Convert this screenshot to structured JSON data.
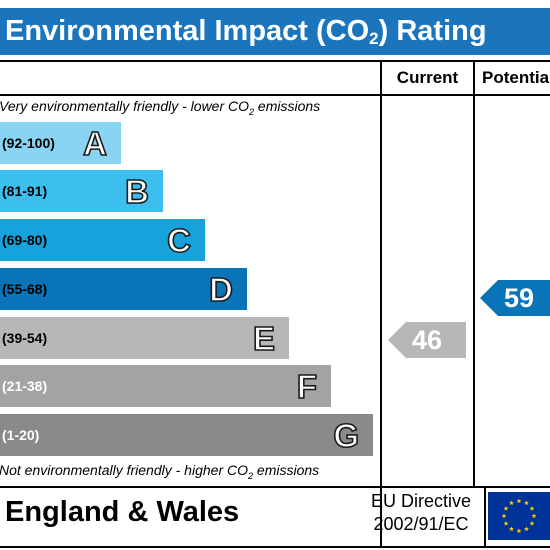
{
  "title": {
    "main": "Environmental Impact (CO",
    "sub": "2",
    "end": ") Rating"
  },
  "columns": {
    "current": "Current",
    "potential": "Potential"
  },
  "notes": {
    "top_pre": "Very environmentally friendly - lower CO",
    "top_sub": "2",
    "top_post": " emissions",
    "bottom_pre": "Not environmentally friendly - higher CO",
    "bottom_sub": "2",
    "bottom_post": " emissions"
  },
  "bands": [
    {
      "range": "(92-100)",
      "letter": "A",
      "color": "#89d3f3",
      "light_text": false
    },
    {
      "range": "(81-91)",
      "letter": "B",
      "color": "#3cbfef",
      "light_text": false
    },
    {
      "range": "(69-80)",
      "letter": "C",
      "color": "#17a2db",
      "light_text": false
    },
    {
      "range": "(55-68)",
      "letter": "D",
      "color": "#0a74b9",
      "light_text": false
    },
    {
      "range": "(39-54)",
      "letter": "E",
      "color": "#b7b7b9",
      "light_text": false
    },
    {
      "range": "(21-38)",
      "letter": "F",
      "color": "#a3a3a5",
      "light_text": true
    },
    {
      "range": "(1-20)",
      "letter": "G",
      "color": "#8a8a8c",
      "light_text": true
    }
  ],
  "ratings": {
    "current": {
      "value": "46",
      "band": "E",
      "color": "#b7b7b9"
    },
    "potential": {
      "value": "59",
      "band": "D",
      "color": "#0a74b9"
    }
  },
  "footer": {
    "country": "England & Wales",
    "directive_line1": "EU Directive",
    "directive_line2": "2002/91/EC"
  },
  "icons": {
    "flag": "eu-flag-icon"
  }
}
